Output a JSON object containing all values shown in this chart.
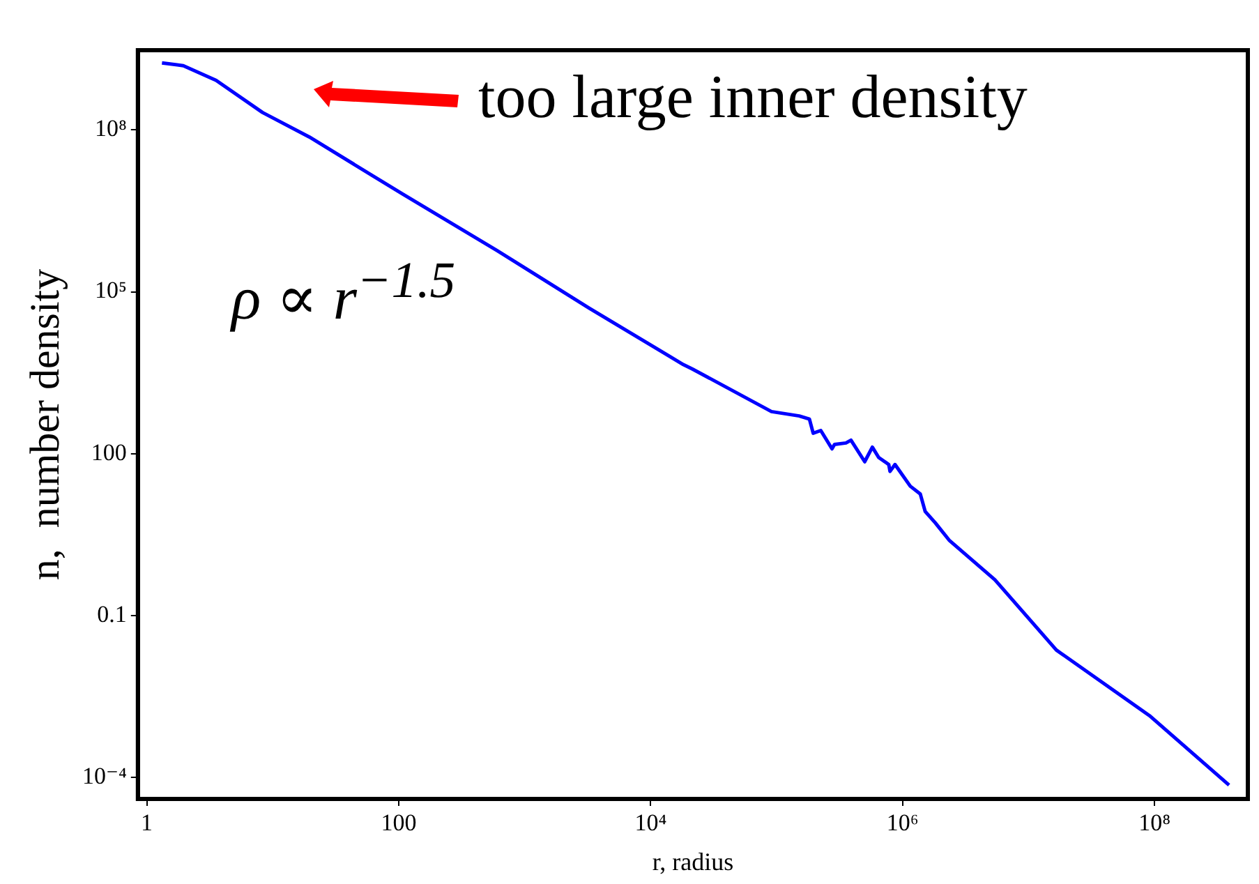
{
  "chart_data": {
    "type": "line",
    "xlabel": "r, radius",
    "ylabel": "n,  number density",
    "log": "xy",
    "grid": false,
    "legend": false,
    "marker": "none",
    "line_style": "solid",
    "xlim": [
      0.85,
      550000000
    ],
    "ylim": [
      4e-05,
      3000000000
    ],
    "xticks": [
      1,
      100,
      {
        "value": 10000,
        "label": "10⁴"
      },
      {
        "value": 1000000,
        "label": "10⁶"
      },
      {
        "value": 100000000,
        "label": "10⁸"
      }
    ],
    "yticks": [
      {
        "value": 0.0001,
        "label": "10⁻⁴"
      },
      0.1,
      100,
      {
        "value": 100000,
        "label": "10⁵"
      },
      {
        "value": 100000000,
        "label": "10⁸"
      }
    ],
    "annotations": [
      "too large inner density",
      "ρ ∝ r$^{−1.5}$"
    ],
    "series": [
      {
        "color": "#0000ff",
        "x": [
          1.32,
          1.95,
          3.55,
          8.3,
          19.5,
          107,
          603,
          3240,
          18200,
          21400,
          91000,
          151000,
          182000,
          195000,
          224000,
          275000,
          288000,
          355000,
          389000,
          500000,
          575000,
          646000,
          776000,
          794000,
          870000,
          1150000,
          1380000,
          1510000,
          1820000,
          2340000,
          5400000,
          16600000,
          91000000,
          390000000
        ],
        "values": [
          1740000000,
          1550000000,
          830000000,
          210000000,
          74000000,
          6500000,
          580000,
          50000,
          4470,
          3720,
          603,
          501,
          437,
          240,
          269,
          123,
          148,
          158,
          178,
          71,
          132,
          85,
          63,
          47,
          63,
          25,
          18,
          8.5,
          5.2,
          2.5,
          0.46,
          0.023,
          0.0014,
          7.2e-05
        ]
      }
    ]
  }
}
